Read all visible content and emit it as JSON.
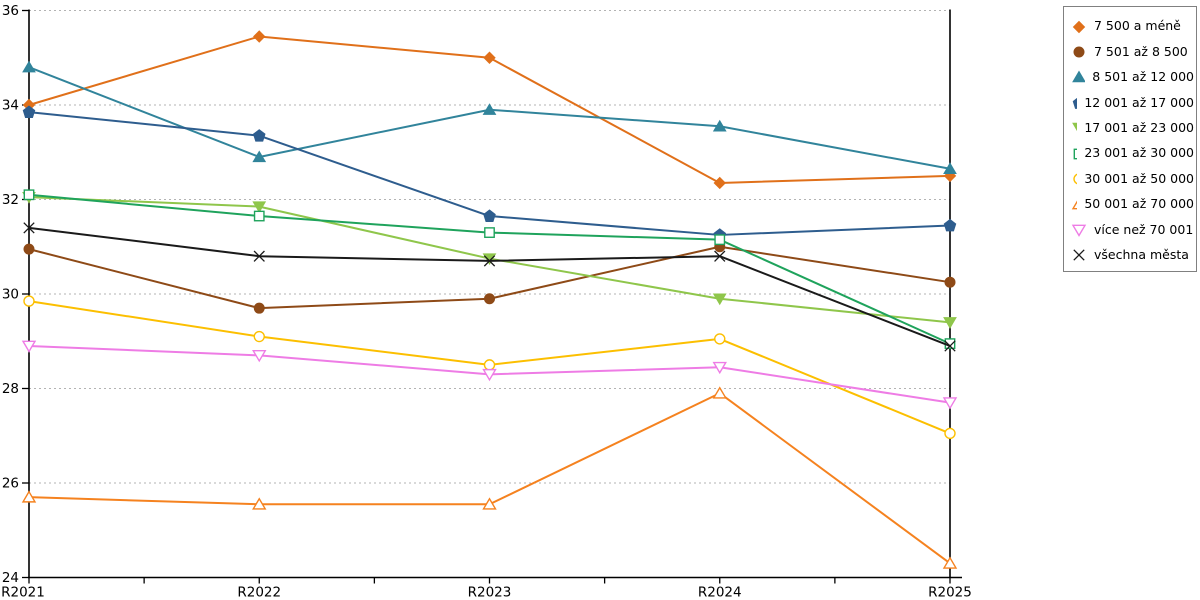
{
  "chart_data": {
    "type": "line",
    "title": "",
    "xlabel": "",
    "ylabel": "",
    "categories": [
      "R2021",
      "R2022",
      "R2023",
      "R2024",
      "R2025"
    ],
    "ylim": [
      24,
      36
    ],
    "ytick_step": 2,
    "grid": "horizontal-dotted",
    "legend_position": "outside-top-right",
    "axis_color": "#000000",
    "grid_color": "#b3b3b3",
    "series": [
      {
        "name": "7 500 a méně",
        "marker": "diamond",
        "open": false,
        "color": "#e0701a",
        "values": [
          34.0,
          35.45,
          35.0,
          32.35,
          32.5
        ]
      },
      {
        "name": "7 501 až 8 500",
        "marker": "circle",
        "open": false,
        "color": "#8e4a17",
        "values": [
          30.95,
          29.7,
          29.9,
          31.0,
          30.25
        ]
      },
      {
        "name": "8 501 až 12 000",
        "marker": "triangle-up",
        "open": false,
        "color": "#31849b",
        "values": [
          34.8,
          32.9,
          33.9,
          33.55,
          32.65
        ]
      },
      {
        "name": "12 001 až 17 000",
        "marker": "pentagon",
        "open": false,
        "color": "#2e5d8e",
        "values": [
          33.85,
          33.35,
          31.65,
          31.25,
          31.45
        ]
      },
      {
        "name": "17 001 až 23 000",
        "marker": "triangle-down",
        "open": false,
        "color": "#8fc64b",
        "values": [
          32.05,
          31.85,
          30.75,
          29.9,
          29.4
        ]
      },
      {
        "name": "23 001 až 30 000",
        "marker": "square",
        "open": true,
        "color": "#1fa35c",
        "values": [
          32.1,
          31.65,
          31.3,
          31.15,
          28.95
        ]
      },
      {
        "name": "30 001 až 50 000",
        "marker": "circle",
        "open": true,
        "color": "#fcbf00",
        "values": [
          29.85,
          29.1,
          28.5,
          29.05,
          27.05
        ]
      },
      {
        "name": "50 001 až 70 000",
        "marker": "triangle-up",
        "open": true,
        "color": "#f5821f",
        "values": [
          25.7,
          25.55,
          25.55,
          27.9,
          24.3
        ]
      },
      {
        "name": "více než 70 001",
        "marker": "triangle-down",
        "open": true,
        "color": "#ee7ce5",
        "values": [
          28.9,
          28.7,
          28.3,
          28.45,
          27.7
        ]
      },
      {
        "name": "všechna města",
        "marker": "x",
        "open": true,
        "color": "#1a1a1a",
        "values": [
          31.4,
          30.8,
          30.7,
          30.8,
          28.9
        ]
      }
    ]
  }
}
